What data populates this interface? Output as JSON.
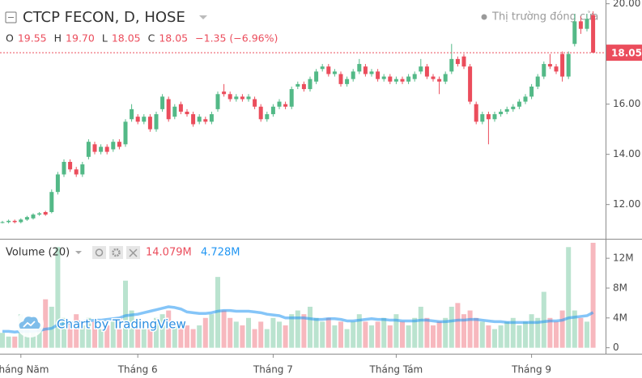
{
  "header": {
    "symbol": "CTCP FECON, D, HOSE",
    "market_status": "Thị trường đóng cửa",
    "ohlc": [
      {
        "key": "O",
        "value": "19.55"
      },
      {
        "key": "H",
        "value": "19.70"
      },
      {
        "key": "L",
        "value": "18.05"
      },
      {
        "key": "C",
        "value": "18.05"
      }
    ],
    "change": "−1.35 (−6.96%)",
    "watermark": "Chart by TradingView"
  },
  "chart_data": [
    {
      "type": "candlestick",
      "categories": [
        null,
        null,
        null,
        "Tháng Năm",
        null,
        null,
        null,
        null,
        null,
        null,
        null,
        null,
        null,
        null,
        null,
        null,
        null,
        null,
        null,
        null,
        null,
        null,
        "Tháng 6",
        null,
        null,
        null,
        null,
        null,
        null,
        null,
        null,
        null,
        null,
        null,
        null,
        null,
        null,
        null,
        null,
        null,
        null,
        null,
        null,
        null,
        "Tháng 7",
        null,
        null,
        null,
        null,
        null,
        null,
        null,
        null,
        null,
        null,
        null,
        null,
        null,
        null,
        null,
        null,
        null,
        null,
        null,
        "Tháng Tám",
        null,
        null,
        null,
        null,
        null,
        null,
        null,
        null,
        null,
        null,
        null,
        null,
        null,
        null,
        null,
        null,
        null,
        null,
        null,
        null,
        null,
        "Tháng 9",
        null,
        null,
        null,
        null,
        null,
        null,
        null,
        null,
        null,
        null
      ],
      "open": [
        11.3,
        11.3,
        11.35,
        11.3,
        11.4,
        11.45,
        11.6,
        11.7,
        11.7,
        12.5,
        13.2,
        13.7,
        13.4,
        13.2,
        13.9,
        14.4,
        14.1,
        14.3,
        14.2,
        14.5,
        14.4,
        15.4,
        15.5,
        15.3,
        15.5,
        15.0,
        15.8,
        16.2,
        15.5,
        16.0,
        15.7,
        15.6,
        15.3,
        15.4,
        15.3,
        15.8,
        16.5,
        16.4,
        16.2,
        16.3,
        16.2,
        16.2,
        15.9,
        15.4,
        15.6,
        15.9,
        16.0,
        15.9,
        16.7,
        16.8,
        16.6,
        16.9,
        17.4,
        17.5,
        17.2,
        17.2,
        16.8,
        17.0,
        17.3,
        17.5,
        17.2,
        17.3,
        17.0,
        17.1,
        16.9,
        17.0,
        16.9,
        17.0,
        17.3,
        17.5,
        17.1,
        17.0,
        16.9,
        17.3,
        17.8,
        17.9,
        17.5,
        16.0,
        15.3,
        15.6,
        15.4,
        15.6,
        15.7,
        15.8,
        15.9,
        16.1,
        16.3,
        16.7,
        17.1,
        17.6,
        17.5,
        18.0,
        17.1,
        18.4,
        19.3,
        19.0,
        19.55
      ],
      "high": [
        11.35,
        11.4,
        11.4,
        11.45,
        11.55,
        11.65,
        11.7,
        11.75,
        12.6,
        13.3,
        13.8,
        13.8,
        13.5,
        13.7,
        14.6,
        14.5,
        14.4,
        14.4,
        14.6,
        14.6,
        15.4,
        16.0,
        15.6,
        15.6,
        15.6,
        15.7,
        16.4,
        16.3,
        16.0,
        16.1,
        15.8,
        15.7,
        15.6,
        15.5,
        15.7,
        16.5,
        16.8,
        16.5,
        16.4,
        16.4,
        16.4,
        16.3,
        16.0,
        15.7,
        16.0,
        16.2,
        16.1,
        16.7,
        16.9,
        16.9,
        17.1,
        17.4,
        17.6,
        17.6,
        17.4,
        17.3,
        17.1,
        17.4,
        17.8,
        17.6,
        17.4,
        17.4,
        17.2,
        17.2,
        17.1,
        17.1,
        17.2,
        17.3,
        17.8,
        17.6,
        17.2,
        17.1,
        17.3,
        18.4,
        17.9,
        18.0,
        17.6,
        16.1,
        15.7,
        15.7,
        15.7,
        15.8,
        15.9,
        16.0,
        16.2,
        16.4,
        16.8,
        17.2,
        17.7,
        18.0,
        17.6,
        18.1,
        18.1,
        19.6,
        19.5,
        19.6,
        19.7
      ],
      "low": [
        11.25,
        11.25,
        11.25,
        11.25,
        11.35,
        11.4,
        11.55,
        11.55,
        11.65,
        12.4,
        13.1,
        13.3,
        13.1,
        13.1,
        13.8,
        14.0,
        14.0,
        14.0,
        14.1,
        14.2,
        14.3,
        15.3,
        15.2,
        15.2,
        14.9,
        14.9,
        15.7,
        15.3,
        15.4,
        15.6,
        15.5,
        15.1,
        15.2,
        15.2,
        15.2,
        15.7,
        16.3,
        16.1,
        16.1,
        16.1,
        16.1,
        15.8,
        15.3,
        15.3,
        15.5,
        15.8,
        15.8,
        15.8,
        16.6,
        16.5,
        16.5,
        16.8,
        17.3,
        17.1,
        17.1,
        16.7,
        16.7,
        16.9,
        17.2,
        17.1,
        17.1,
        16.9,
        16.9,
        16.8,
        16.8,
        16.8,
        16.8,
        16.9,
        17.2,
        17.0,
        16.9,
        16.4,
        16.8,
        17.2,
        17.5,
        17.4,
        16.0,
        15.2,
        15.2,
        14.4,
        15.3,
        15.5,
        15.6,
        15.7,
        15.8,
        16.0,
        16.2,
        16.6,
        17.0,
        17.4,
        17.2,
        16.9,
        17.0,
        18.3,
        18.8,
        18.9,
        18.05
      ],
      "close": [
        11.3,
        11.35,
        11.3,
        11.4,
        11.5,
        11.6,
        11.65,
        11.6,
        12.5,
        13.2,
        13.7,
        13.4,
        13.2,
        13.6,
        14.5,
        14.1,
        14.3,
        14.1,
        14.5,
        14.3,
        15.3,
        15.8,
        15.3,
        15.5,
        15.0,
        15.6,
        16.3,
        15.4,
        15.9,
        15.7,
        15.6,
        15.2,
        15.5,
        15.3,
        15.6,
        16.4,
        16.4,
        16.2,
        16.3,
        16.2,
        16.3,
        15.9,
        15.4,
        15.6,
        15.9,
        16.1,
        15.9,
        16.6,
        16.8,
        16.6,
        17.0,
        17.3,
        17.5,
        17.2,
        17.3,
        16.8,
        17.0,
        17.3,
        17.6,
        17.2,
        17.3,
        17.0,
        17.1,
        16.9,
        17.0,
        16.9,
        17.1,
        17.2,
        17.5,
        17.1,
        17.0,
        16.9,
        17.2,
        17.8,
        17.6,
        17.5,
        16.1,
        15.3,
        15.6,
        15.4,
        15.6,
        15.7,
        15.8,
        15.9,
        16.1,
        16.3,
        16.7,
        17.1,
        17.6,
        17.5,
        17.3,
        17.1,
        18.0,
        19.3,
        19.0,
        19.4,
        18.05
      ],
      "up_color": "#53b987",
      "down_color": "#eb4d5c",
      "last_price": {
        "value": 18.05,
        "label": "18.05"
      },
      "ylim": [
        10.7,
        20.15
      ],
      "yticks": [
        {
          "value": 12,
          "label": "12.00"
        },
        {
          "value": 14,
          "label": "14.00"
        },
        {
          "value": 16,
          "label": "16.00"
        },
        {
          "value": 18,
          "label": "18.00"
        },
        {
          "value": 20,
          "label": "20.00"
        }
      ]
    },
    {
      "type": "bar",
      "title": "Volume (20)",
      "up_color": "rgba(83,185,135,0.4)",
      "down_color": "rgba(235,77,92,0.4)",
      "series": [
        {
          "name": "Volume",
          "last_label": "14.079M",
          "color": "#eb4d5c",
          "values": [
            2.0,
            1.5,
            1.5,
            4.5,
            2.5,
            2.0,
            3.0,
            6.5,
            5.5,
            13.5,
            4.0,
            3.5,
            4.5,
            3.0,
            4.0,
            3.5,
            2.5,
            3.0,
            3.5,
            4.0,
            9.0,
            5.0,
            3.5,
            2.5,
            3.0,
            4.0,
            4.5,
            5.0,
            3.0,
            3.5,
            3.0,
            2.5,
            3.0,
            4.0,
            4.5,
            9.5,
            5.0,
            4.0,
            3.5,
            3.0,
            4.0,
            2.5,
            3.5,
            2.5,
            4.0,
            3.5,
            3.0,
            4.5,
            5.0,
            4.5,
            5.5,
            4.0,
            3.5,
            4.0,
            3.0,
            3.5,
            2.5,
            3.5,
            4.5,
            3.5,
            3.0,
            3.5,
            4.0,
            3.0,
            4.5,
            3.5,
            3.0,
            4.0,
            5.5,
            4.0,
            3.0,
            3.5,
            4.0,
            5.5,
            6.0,
            4.5,
            5.0,
            4.0,
            3.5,
            3.0,
            2.5,
            3.0,
            3.5,
            4.0,
            3.0,
            3.5,
            4.5,
            4.0,
            7.5,
            4.0,
            3.5,
            5.0,
            13.5,
            5.0,
            4.0,
            3.5,
            14.079
          ]
        },
        {
          "name": "MA",
          "type": "line",
          "last_label": "4.728M",
          "color": "#2196f3",
          "values": [
            2.2,
            2.2,
            2.1,
            2.2,
            2.2,
            2.2,
            2.3,
            2.5,
            2.6,
            3.1,
            3.2,
            3.3,
            3.4,
            3.5,
            3.6,
            3.7,
            3.7,
            3.8,
            3.9,
            4.0,
            4.3,
            4.4,
            4.5,
            4.7,
            4.9,
            5.1,
            5.3,
            5.5,
            5.4,
            5.2,
            4.8,
            4.7,
            4.6,
            4.6,
            4.7,
            4.9,
            5.0,
            5.0,
            4.9,
            4.9,
            4.9,
            4.8,
            4.7,
            4.5,
            4.4,
            4.3,
            4.0,
            4.0,
            4.0,
            4.0,
            3.9,
            3.8,
            3.8,
            3.9,
            3.9,
            3.8,
            3.6,
            3.6,
            3.7,
            3.8,
            3.9,
            3.8,
            3.8,
            3.7,
            3.7,
            3.6,
            3.6,
            3.6,
            3.7,
            3.7,
            3.6,
            3.5,
            3.5,
            3.6,
            3.7,
            3.7,
            3.8,
            3.8,
            3.7,
            3.6,
            3.5,
            3.5,
            3.4,
            3.4,
            3.4,
            3.4,
            3.4,
            3.4,
            3.5,
            3.6,
            3.6,
            3.7,
            4.0,
            4.1,
            4.2,
            4.3,
            4.728
          ]
        }
      ],
      "ylim": [
        -0.8,
        14.4
      ],
      "yticks": [
        0,
        {
          "value": 4,
          "label": "4M"
        },
        {
          "value": 8,
          "label": "8M"
        },
        {
          "value": 12,
          "label": "12M"
        }
      ]
    }
  ]
}
